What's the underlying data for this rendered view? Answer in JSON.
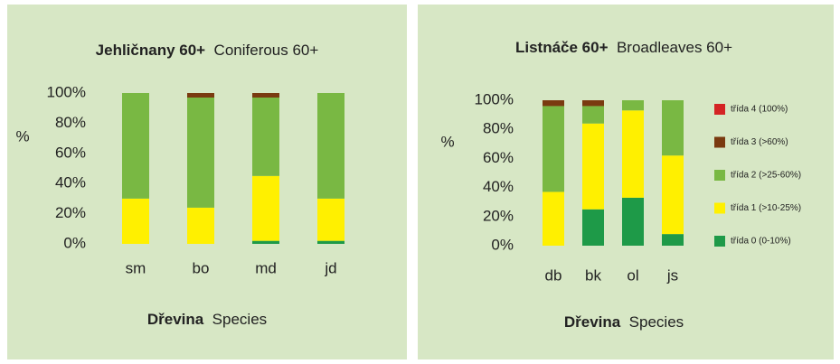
{
  "chart_data": [
    {
      "type": "bar",
      "stacked": true,
      "title": "Jehličnany 60+",
      "title_en": "Coniferous 60+",
      "xlabel": "Dřevina",
      "xlabel_en": "Species",
      "ylabel": "%",
      "categories": [
        "sm",
        "bo",
        "md",
        "jd"
      ],
      "ylim": [
        0,
        100
      ],
      "yticks": [
        {
          "value": 0,
          "label": "0%"
        },
        {
          "value": 20,
          "label": "20%"
        },
        {
          "value": 40,
          "label": "40%"
        },
        {
          "value": 60,
          "label": "60%"
        },
        {
          "value": 80,
          "label": "80%"
        },
        {
          "value": 100,
          "label": "100%"
        }
      ],
      "series": [
        {
          "color": "#1e9a48",
          "values": [
            0,
            0,
            2,
            2
          ]
        },
        {
          "color": "#fff000",
          "values": [
            30,
            24,
            43,
            28
          ]
        },
        {
          "color": "#79b843",
          "values": [
            70,
            73,
            52,
            70
          ]
        },
        {
          "color": "#7a3a10",
          "values": [
            0,
            3,
            3,
            0
          ]
        },
        {
          "color": "#d42424",
          "values": [
            0,
            0,
            0,
            0
          ]
        }
      ]
    },
    {
      "type": "bar",
      "stacked": true,
      "title": "Listnáče 60+",
      "title_en": "Broadleaves 60+",
      "xlabel": "Dřevina",
      "xlabel_en": "Species",
      "ylabel": "%",
      "categories": [
        "db",
        "bk",
        "ol",
        "js"
      ],
      "ylim": [
        0,
        100
      ],
      "yticks": [
        {
          "value": 0,
          "label": "0%"
        },
        {
          "value": 20,
          "label": "20%"
        },
        {
          "value": 40,
          "label": "40%"
        },
        {
          "value": 60,
          "label": "60%"
        },
        {
          "value": 80,
          "label": "80%"
        },
        {
          "value": 100,
          "label": "100%"
        }
      ],
      "legend": "right",
      "series": [
        {
          "name": "třída 0 (0-10%)",
          "color": "#1e9a48",
          "values": [
            0,
            25,
            33,
            8
          ]
        },
        {
          "name": "třída 1 (>10-25%)",
          "color": "#fff000",
          "values": [
            37,
            59,
            60,
            54
          ]
        },
        {
          "name": "třída 2 (>25-60%)",
          "color": "#79b843",
          "values": [
            59,
            12,
            7,
            38
          ]
        },
        {
          "name": "třída 3 (>60%)",
          "color": "#7a3a10",
          "values": [
            4,
            4,
            0,
            0
          ]
        },
        {
          "name": "třída 4 (100%)",
          "color": "#d42424",
          "values": [
            0,
            0,
            0,
            0
          ]
        }
      ]
    }
  ]
}
